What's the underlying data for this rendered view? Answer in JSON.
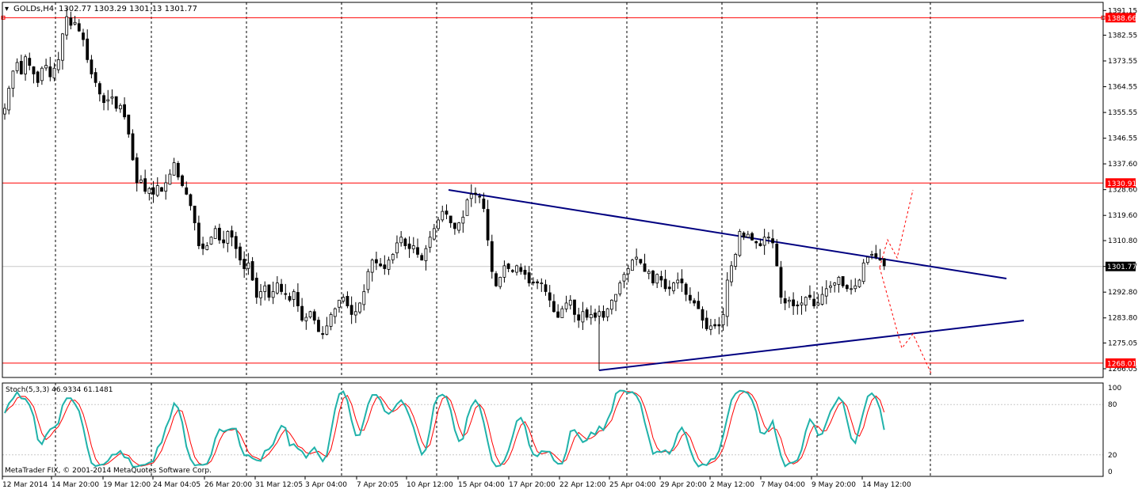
{
  "header": {
    "symbol": "GOLDs,H4",
    "ohlc": "1302.77 1303.29 1301.13 1301.77"
  },
  "indicator": {
    "label": "Stoch(5,3,3) 46.9334 61.1481",
    "levels": [
      "100",
      "80",
      "20",
      "0"
    ]
  },
  "copyright": "MetaTrader FIX, © 2001-2014 MetaQuotes Software Corp.",
  "colors": {
    "candle": "#000000",
    "grid": "#c8c8c8",
    "session_separator": "#000000",
    "hline": "#ff0000",
    "trendline": "#000080",
    "forecast": "#ff0000",
    "stoch_main": "#20b2aa",
    "stoch_signal": "#ff0000",
    "price_label_bg": "#ff0000",
    "current_price_bg": "#000000"
  },
  "chart_data": {
    "type": "candlestick",
    "title": "GOLDs,H4",
    "price_axis_ticks": [
      "1391.15",
      "1382.55",
      "1373.55",
      "1364.55",
      "1355.55",
      "1346.55",
      "1337.60",
      "1328.60",
      "1319.60",
      "1310.80",
      "1301.77",
      "1292.80",
      "1283.80",
      "1275.05",
      "1266.05"
    ],
    "time_axis_ticks": [
      "12 Mar 2014",
      "14 Mar 20:00",
      "19 Mar 12:00",
      "24 Mar 04:05",
      "26 Mar 20:00",
      "31 Mar 12:05",
      "3 Apr 04:00",
      "7 Apr 20:05",
      "10 Apr 12:00",
      "15 Apr 04:00",
      "17 Apr 20:00",
      "22 Apr 12:00",
      "25 Apr 04:00",
      "29 Apr 20:00",
      "2 May 12:00",
      "7 May 04:00",
      "9 May 20:00",
      "14 May 12:00"
    ],
    "ylim": [
      1263.0,
      1394.0
    ],
    "horizontal_levels": [
      "1388.66",
      "1330.91",
      "1268.01"
    ],
    "current_price": "1301.77",
    "closes": [
      1357,
      1364,
      1370,
      1373,
      1369,
      1375,
      1372,
      1369,
      1366,
      1371,
      1372,
      1368,
      1371,
      1374,
      1383,
      1389,
      1386,
      1387,
      1384,
      1381,
      1374,
      1369,
      1366,
      1362,
      1359,
      1360,
      1361,
      1357,
      1358,
      1354,
      1348,
      1339,
      1331,
      1332,
      1328,
      1329,
      1327,
      1330,
      1328,
      1331,
      1334,
      1338,
      1333,
      1330,
      1327,
      1323,
      1317,
      1309,
      1308,
      1309,
      1312,
      1315,
      1311,
      1310,
      1314,
      1312,
      1308,
      1304,
      1301,
      1303,
      1297,
      1291,
      1293,
      1295,
      1291,
      1293,
      1296,
      1293,
      1292,
      1290,
      1293,
      1288,
      1283,
      1284,
      1286,
      1283,
      1279,
      1278,
      1281,
      1285,
      1287,
      1290,
      1291,
      1288,
      1285,
      1286,
      1289,
      1293,
      1300,
      1304,
      1303,
      1302,
      1301,
      1304,
      1306,
      1310,
      1312,
      1309,
      1308,
      1309,
      1306,
      1304,
      1308,
      1312,
      1315,
      1318,
      1321,
      1320,
      1317,
      1315,
      1317,
      1319,
      1325,
      1327,
      1327,
      1326,
      1322,
      1311,
      1300,
      1295,
      1298,
      1302,
      1301,
      1300,
      1302,
      1300,
      1299,
      1296,
      1296,
      1296,
      1296,
      1293,
      1290,
      1286,
      1284,
      1287,
      1289,
      1290,
      1285,
      1283,
      1286,
      1284,
      1285,
      1284,
      1286,
      1284,
      1287,
      1290,
      1292,
      1296,
      1299,
      1301,
      1304,
      1305,
      1303,
      1300,
      1300,
      1296,
      1299,
      1297,
      1294,
      1294,
      1296,
      1297,
      1296,
      1292,
      1290,
      1289,
      1287,
      1283,
      1280,
      1281,
      1281,
      1281,
      1285,
      1297,
      1302,
      1306,
      1314,
      1312,
      1313,
      1311,
      1310,
      1309,
      1312,
      1312,
      1310,
      1302,
      1291,
      1289,
      1290,
      1288,
      1288,
      1289,
      1291,
      1291,
      1288,
      1289,
      1292,
      1294,
      1295,
      1296,
      1298,
      1295,
      1294,
      1294,
      1295,
      1297,
      1303,
      1305,
      1306,
      1305,
      1304,
      1302
    ]
  }
}
